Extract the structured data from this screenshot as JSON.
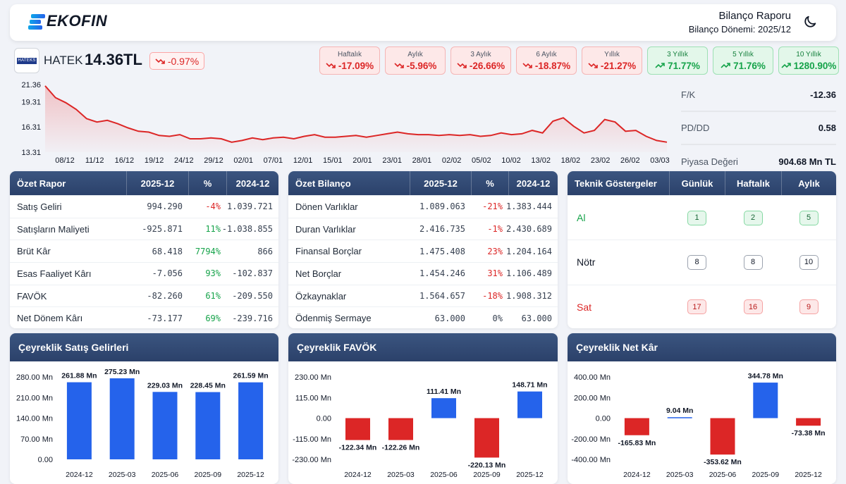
{
  "header": {
    "logo_text": "EKOFIN",
    "report_title": "Bilanço Raporu",
    "report_period": "Bilanço Dönemi: 2025/12",
    "theme_icon": "moon-icon"
  },
  "ticker": {
    "logo_text": "HATEKS",
    "symbol": "HATEK",
    "price": "14.36TL",
    "change": "-0.97%"
  },
  "periods": [
    {
      "label": "Haftalık",
      "value": "-17.09%",
      "trend": "down"
    },
    {
      "label": "Aylık",
      "value": "-5.96%",
      "trend": "down"
    },
    {
      "label": "3 Aylık",
      "value": "-26.66%",
      "trend": "down"
    },
    {
      "label": "6 Aylık",
      "value": "-18.87%",
      "trend": "down"
    },
    {
      "label": "Yıllık",
      "value": "-21.27%",
      "trend": "down"
    },
    {
      "label": "3 Yıllık",
      "value": "71.77%",
      "trend": "up"
    },
    {
      "label": "5 Yıllık",
      "value": "71.76%",
      "trend": "up"
    },
    {
      "label": "10 Yıllık",
      "value": "1280.90%",
      "trend": "up"
    }
  ],
  "stats": [
    {
      "label": "F/K",
      "value": "-12.36"
    },
    {
      "label": "PD/DD",
      "value": "0.58"
    },
    {
      "label": "Piyasa Değeri",
      "value": "904.68 Mn TL"
    }
  ],
  "summary_report": {
    "headers": [
      "Özet Rapor",
      "2025-12",
      "%",
      "2024-12"
    ],
    "rows": [
      {
        "name": "Satış Geliri",
        "cur": "994.290",
        "pct": "-4%",
        "prev": "1.039.721",
        "tone": "neg"
      },
      {
        "name": "Satışların Maliyeti",
        "cur": "-925.871",
        "pct": "11%",
        "prev": "-1.038.855",
        "tone": "pos"
      },
      {
        "name": "Brüt Kâr",
        "cur": "68.418",
        "pct": "7794%",
        "prev": "866",
        "tone": "pos"
      },
      {
        "name": "Esas Faaliyet Kârı",
        "cur": "-7.056",
        "pct": "93%",
        "prev": "-102.837",
        "tone": "pos"
      },
      {
        "name": "FAVÖK",
        "cur": "-82.260",
        "pct": "61%",
        "prev": "-209.550",
        "tone": "pos"
      },
      {
        "name": "Net Dönem Kârı",
        "cur": "-73.177",
        "pct": "69%",
        "prev": "-239.716",
        "tone": "pos"
      }
    ]
  },
  "summary_balance": {
    "headers": [
      "Özet Bilanço",
      "2025-12",
      "%",
      "2024-12"
    ],
    "rows": [
      {
        "name": "Dönen Varlıklar",
        "cur": "1.089.063",
        "pct": "-21%",
        "prev": "1.383.444",
        "tone": "neg"
      },
      {
        "name": "Duran Varlıklar",
        "cur": "2.416.735",
        "pct": "-1%",
        "prev": "2.430.689",
        "tone": "neg"
      },
      {
        "name": "Finansal Borçlar",
        "cur": "1.475.408",
        "pct": "23%",
        "prev": "1.204.164",
        "tone": "neg"
      },
      {
        "name": "Net Borçlar",
        "cur": "1.454.246",
        "pct": "31%",
        "prev": "1.106.489",
        "tone": "neg"
      },
      {
        "name": "Özkaynaklar",
        "cur": "1.564.657",
        "pct": "-18%",
        "prev": "1.908.312",
        "tone": "neg"
      },
      {
        "name": "Ödenmiş Sermaye",
        "cur": "63.000",
        "pct": "0%",
        "prev": "63.000",
        "tone": "neutral"
      }
    ]
  },
  "technical": {
    "headers": [
      "Teknik Göstergeler",
      "Günlük",
      "Haftalık",
      "Aylık"
    ],
    "rows": [
      {
        "name": "Al",
        "values": [
          "1",
          "2",
          "5"
        ],
        "tone": "g"
      },
      {
        "name": "Nötr",
        "values": [
          "8",
          "8",
          "10"
        ],
        "tone": "n"
      },
      {
        "name": "Sat",
        "values": [
          "17",
          "16",
          "9"
        ],
        "tone": "r"
      }
    ]
  },
  "colors": {
    "up": "#16a34a",
    "down": "#dc2626",
    "bar_pos": "#2563eb",
    "bar_neg": "#dc2626",
    "header_bg": "#2f466f"
  },
  "chart_data": [
    {
      "type": "area",
      "title": "",
      "yticks": [
        "21.36",
        "19.31",
        "16.31",
        "13.31"
      ],
      "ytick_values": [
        21.36,
        19.31,
        16.31,
        13.31
      ],
      "ylim": [
        13.31,
        21.36
      ],
      "xticks": [
        "08/12",
        "11/12",
        "16/12",
        "19/12",
        "24/12",
        "29/12",
        "02/01",
        "07/01",
        "12/01",
        "15/01",
        "20/01",
        "23/01",
        "28/01",
        "02/02",
        "05/02",
        "10/02",
        "13/02",
        "18/02",
        "23/02",
        "26/02",
        "03/03"
      ],
      "values": [
        21.2,
        19.8,
        19.2,
        18.4,
        17.3,
        16.9,
        17.1,
        16.7,
        16.2,
        15.8,
        15.7,
        15.3,
        15.2,
        15.4,
        14.9,
        14.9,
        15.0,
        14.9,
        14.5,
        14.7,
        15.0,
        14.8,
        15.0,
        15.1,
        14.9,
        15.2,
        15.4,
        15.1,
        15.1,
        15.2,
        15.3,
        15.1,
        15.3,
        15.5,
        15.7,
        15.5,
        15.4,
        15.4,
        15.3,
        15.4,
        15.3,
        15.4,
        15.2,
        15.3,
        15.6,
        15.4,
        15.5,
        15.9,
        15.6,
        17.0,
        17.4,
        16.4,
        15.6,
        15.9,
        17.2,
        16.9,
        15.8,
        15.9,
        15.2,
        14.7,
        14.5
      ]
    },
    {
      "type": "bar",
      "title": "Çeyreklik Satış Gelirleri",
      "categories": [
        "2024-12",
        "2025-03",
        "2025-06",
        "2025-09",
        "2025-12"
      ],
      "values": [
        261.88,
        275.23,
        229.03,
        228.45,
        261.59
      ],
      "labels": [
        "261.88 Mn",
        "275.23 Mn",
        "229.03 Mn",
        "228.45 Mn",
        "261.59 Mn"
      ],
      "yticks": [
        "280.00 Mn",
        "210.00 Mn",
        "140.00 Mn",
        "70.00 Mn",
        "0.00"
      ],
      "ytick_values": [
        280,
        210,
        140,
        70,
        0
      ],
      "ylim": [
        0,
        280
      ]
    },
    {
      "type": "bar",
      "title": "Çeyreklik FAVÖK",
      "categories": [
        "2024-12",
        "2025-03",
        "2025-06",
        "2025-09",
        "2025-12"
      ],
      "values": [
        -122.34,
        -122.26,
        111.41,
        -220.13,
        148.71
      ],
      "labels": [
        "-122.34 Mn",
        "-122.26 Mn",
        "111.41 Mn",
        "-220.13 Mn",
        "148.71 Mn"
      ],
      "yticks": [
        "230.00 Mn",
        "115.00 Mn",
        "0.00",
        "-115.00 Mn",
        "-230.00 Mn"
      ],
      "ytick_values": [
        230,
        115,
        0,
        -115,
        -230
      ],
      "ylim": [
        -230,
        230
      ]
    },
    {
      "type": "bar",
      "title": "Çeyreklik Net Kâr",
      "categories": [
        "2024-12",
        "2025-03",
        "2025-06",
        "2025-09",
        "2025-12"
      ],
      "values": [
        -165.83,
        9.04,
        -353.62,
        344.78,
        -73.38
      ],
      "labels": [
        "-165.83 Mn",
        "9.04 Mn",
        "-353.62 Mn",
        "344.78 Mn",
        "-73.38 Mn"
      ],
      "yticks": [
        "400.00 Mn",
        "200.00 Mn",
        "0.00",
        "-200.00 Mn",
        "-400.00 Mn"
      ],
      "ytick_values": [
        400,
        200,
        0,
        -200,
        -400
      ],
      "ylim": [
        -400,
        400
      ]
    }
  ]
}
